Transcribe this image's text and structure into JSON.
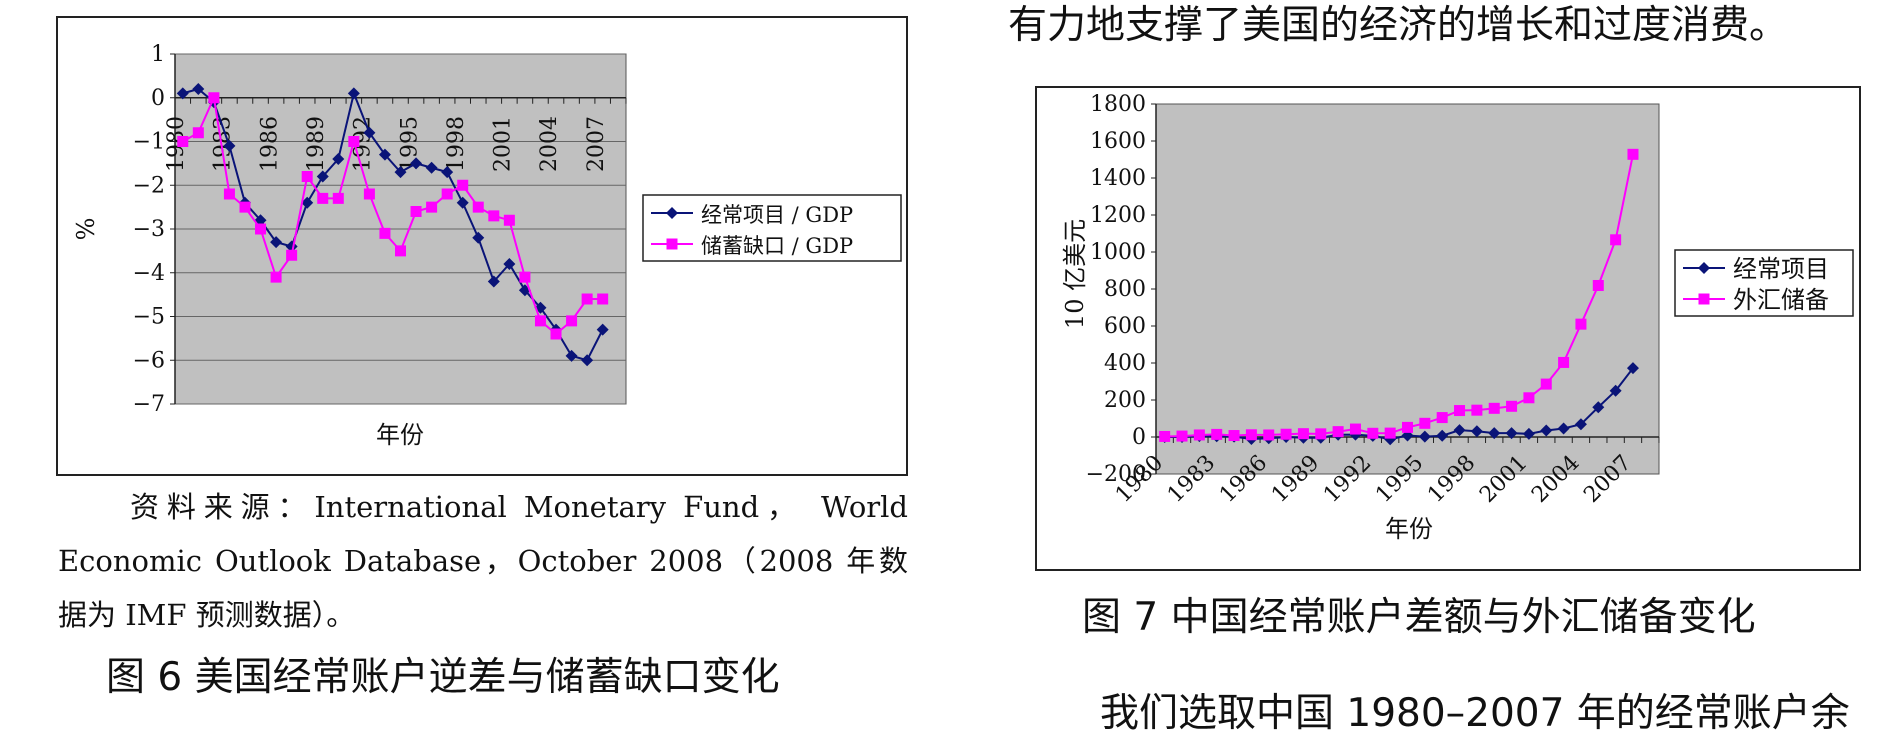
{
  "right_top_text": "有力地支撑了美国的经济的增长和过度消费。",
  "bottom_right_text": "我们选取中国 1980–2007 年的经常账户余",
  "source": {
    "line1": "资料来源：International Monetary Fund，  World",
    "line2": "Economic Outlook Database，October 2008（2008 年数",
    "line3": "据为 IMF 预测数据）。"
  },
  "figure6_caption": "图 6   美国经常账户逆差与储蓄缺口变化",
  "figure7_caption": "图 7   中国经常账户差额与外汇储备变化",
  "colors": {
    "series_a": "#0a1478",
    "series_b": "#ff00ff",
    "plot_bg": "#c0c0c0"
  },
  "chart_data": [
    {
      "type": "line",
      "ylabel": "%",
      "xlabel": "年份",
      "ylim": [
        -7,
        1
      ],
      "yticks": [
        1,
        0,
        -1,
        -2,
        -3,
        -4,
        -5,
        -6,
        -7
      ],
      "ytick_labels": [
        "1",
        "0",
        "−1",
        "−2",
        "−3",
        "−4",
        "−5",
        "−6",
        "−7"
      ],
      "x": [
        1980,
        1981,
        1982,
        1983,
        1984,
        1985,
        1986,
        1987,
        1988,
        1989,
        1990,
        1991,
        1992,
        1993,
        1994,
        1995,
        1996,
        1997,
        1998,
        1999,
        2000,
        2001,
        2002,
        2003,
        2004,
        2005,
        2006,
        2007,
        2008
      ],
      "xtick_labels": [
        "1980",
        "1983",
        "1986",
        "1989",
        "1992",
        "1995",
        "1998",
        "2001",
        "2004",
        "2007"
      ],
      "legend_position": "right",
      "grid": true,
      "series": [
        {
          "name": "经常项目 / GDP",
          "marker": "diamond",
          "values": [
            0.1,
            0.2,
            -0.1,
            -1.1,
            -2.4,
            -2.8,
            -3.3,
            -3.4,
            -2.4,
            -1.8,
            -1.4,
            0.1,
            -0.8,
            -1.3,
            -1.7,
            -1.5,
            -1.6,
            -1.7,
            -2.4,
            -3.2,
            -4.2,
            -3.8,
            -4.4,
            -4.8,
            -5.3,
            -5.9,
            -6.0,
            -5.3,
            null
          ]
        },
        {
          "name": "储蓄缺口 / GDP",
          "marker": "square",
          "values": [
            -1.0,
            -0.8,
            0.0,
            -2.2,
            -2.5,
            -3.0,
            -4.1,
            -3.6,
            -1.8,
            -2.3,
            -2.3,
            -1.0,
            -2.2,
            -3.1,
            -3.5,
            -2.6,
            -2.5,
            -2.2,
            -2.0,
            -2.5,
            -2.7,
            -2.8,
            -4.1,
            -5.1,
            -5.4,
            -5.1,
            -4.6,
            -4.6,
            null
          ]
        }
      ]
    },
    {
      "type": "line",
      "ylabel": "10 亿美元",
      "xlabel": "年份",
      "ylim": [
        -200,
        1800
      ],
      "yticks": [
        1800,
        1600,
        1400,
        1200,
        1000,
        800,
        600,
        400,
        200,
        0,
        -200
      ],
      "ytick_labels": [
        "1800",
        "1600",
        "1400",
        "1200",
        "1000",
        "800",
        "600",
        "400",
        "200",
        "0",
        "−200"
      ],
      "x": [
        1980,
        1981,
        1982,
        1983,
        1984,
        1985,
        1986,
        1987,
        1988,
        1989,
        1990,
        1991,
        1992,
        1993,
        1994,
        1995,
        1996,
        1997,
        1998,
        1999,
        2000,
        2001,
        2002,
        2003,
        2004,
        2005,
        2006,
        2007,
        2008
      ],
      "xtick_labels": [
        "1980",
        "1983",
        "1986",
        "1989",
        "1992",
        "1995",
        "1998",
        "2001",
        "2004",
        "2007"
      ],
      "legend_position": "right",
      "grid": false,
      "series": [
        {
          "name": "经常项目",
          "marker": "diamond",
          "values": [
            0,
            0,
            5,
            4,
            2,
            -11,
            -7,
            0,
            -4,
            -4,
            12,
            13,
            6,
            -12,
            8,
            2,
            7,
            37,
            31,
            21,
            21,
            17,
            35,
            46,
            69,
            161,
            250,
            372,
            null
          ]
        },
        {
          "name": "外汇储备",
          "marker": "square",
          "values": [
            3,
            5,
            11,
            14,
            8,
            12,
            11,
            15,
            18,
            17,
            29,
            43,
            20,
            21,
            52,
            74,
            105,
            143,
            145,
            155,
            166,
            212,
            286,
            403,
            610,
            819,
            1066,
            1528,
            null
          ]
        }
      ]
    }
  ]
}
